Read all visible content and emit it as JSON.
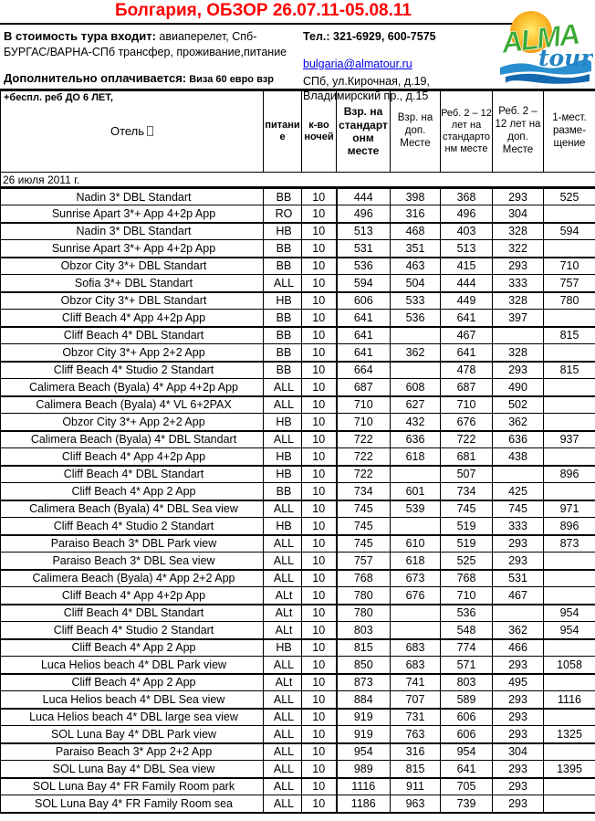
{
  "header": {
    "title": "Болгария, ОБЗОР 26.07.11-05.08.11",
    "includes_label": "В стоимость тура входит:",
    "includes_text": " авиаперелет, Спб-БУРГАС/ВАРНА-СПб трансфер, проживание,питание",
    "extra_label": "Дополнительно оплачивается:",
    "extra_text": " Виза 60 евро взр +беспл. реб ДО 6 ЛЕТ,",
    "phone": "Тел.: 321-6929, 600-7575",
    "email": "bulgaria@almatour.ru",
    "address_line1": "СПб, ул.Кирочная, д.19,",
    "address_line2": "Владимирский пр., д.15",
    "logo": {
      "alma": "ALMA",
      "tour": "tour"
    }
  },
  "colors": {
    "title_red": "#ff0000",
    "link_blue": "#0000ee",
    "logo_green": "#3aaa35",
    "logo_blue": "#2383c4",
    "sun_orange": "#f49a11",
    "wave_blue": "#2a8fd0"
  },
  "table": {
    "columns": [
      "Отель",
      "питание",
      "к-во ночей",
      "Взр. на стандартонм месте",
      "Взр. на доп. Месте",
      "Реб. 2 – 12 лет на стандартонм месте",
      "Реб. 2 – 12 лет на доп. Месте",
      "1-мест. разме-щение"
    ],
    "section_date": "26 июля 2011 г.",
    "rows": [
      [
        "Nadin 3* DBL Standart",
        "BB",
        "10",
        "444",
        "398",
        "368",
        "293",
        "525"
      ],
      [
        "Sunrise Apart 3*+ App 4+2p App",
        "RO",
        "10",
        "496",
        "316",
        "496",
        "304",
        ""
      ],
      [
        "Nadin 3* DBL Standart",
        "HB",
        "10",
        "513",
        "468",
        "403",
        "328",
        "594"
      ],
      [
        "Sunrise Apart 3*+ App 4+2p App",
        "BB",
        "10",
        "531",
        "351",
        "513",
        "322",
        ""
      ],
      [
        "Obzor City 3*+ DBL Standart",
        "BB",
        "10",
        "536",
        "463",
        "415",
        "293",
        "710"
      ],
      [
        "Sofia 3*+ DBL Standart",
        "ALL",
        "10",
        "594",
        "504",
        "444",
        "333",
        "757"
      ],
      [
        "Obzor City 3*+ DBL Standart",
        "HB",
        "10",
        "606",
        "533",
        "449",
        "328",
        "780"
      ],
      [
        "Cliff Beach 4* App 4+2p App",
        "BB",
        "10",
        "641",
        "536",
        "641",
        "397",
        ""
      ],
      [
        "Cliff Beach 4* DBL Standart",
        "BB",
        "10",
        "641",
        "",
        "467",
        "",
        "815"
      ],
      [
        "Obzor City 3*+ App 2+2 App",
        "BB",
        "10",
        "641",
        "362",
        "641",
        "328",
        ""
      ],
      [
        "Cliff Beach 4* Studio 2 Standart",
        "BB",
        "10",
        "664",
        "",
        "478",
        "293",
        "815"
      ],
      [
        "Calimera Beach (Byala) 4* App 4+2p App",
        "ALL",
        "10",
        "687",
        "608",
        "687",
        "490",
        ""
      ],
      [
        "Calimera Beach (Byala) 4* VL 6+2PAX",
        "ALL",
        "10",
        "710",
        "627",
        "710",
        "502",
        ""
      ],
      [
        "Obzor City 3*+ App 2+2 App",
        "HB",
        "10",
        "710",
        "432",
        "676",
        "362",
        ""
      ],
      [
        "Calimera Beach (Byala) 4* DBL Standart",
        "ALL",
        "10",
        "722",
        "636",
        "722",
        "636",
        "937"
      ],
      [
        "Cliff Beach 4* App 4+2p App",
        "HB",
        "10",
        "722",
        "618",
        "681",
        "438",
        ""
      ],
      [
        "Cliff Beach 4* DBL Standart",
        "HB",
        "10",
        "722",
        "",
        "507",
        "",
        "896"
      ],
      [
        "Cliff Beach 4* App 2 App",
        "BB",
        "10",
        "734",
        "601",
        "734",
        "425",
        ""
      ],
      [
        "Calimera Beach (Byala) 4* DBL Sea view",
        "ALL",
        "10",
        "745",
        "539",
        "745",
        "745",
        "971"
      ],
      [
        "Cliff Beach 4* Studio 2 Standart",
        "HB",
        "10",
        "745",
        "",
        "519",
        "333",
        "896"
      ],
      [
        "Paraiso Beach 3* DBL Park view",
        "ALL",
        "10",
        "745",
        "610",
        "519",
        "293",
        "873"
      ],
      [
        "Paraiso Beach 3* DBL Sea view",
        "ALL",
        "10",
        "757",
        "618",
        "525",
        "293",
        ""
      ],
      [
        "Calimera Beach (Byala) 4* App 2+2 App",
        "ALL",
        "10",
        "768",
        "673",
        "768",
        "531",
        ""
      ],
      [
        "Cliff Beach 4* App 4+2p App",
        "ALt",
        "10",
        "780",
        "676",
        "710",
        "467",
        ""
      ],
      [
        "Cliff Beach 4* DBL Standart",
        "ALt",
        "10",
        "780",
        "",
        "536",
        "",
        "954"
      ],
      [
        "Cliff Beach 4* Studio 2 Standart",
        "ALt",
        "10",
        "803",
        "",
        "548",
        "362",
        "954"
      ],
      [
        "Cliff Beach 4* App 2 App",
        "HB",
        "10",
        "815",
        "683",
        "774",
        "466",
        ""
      ],
      [
        "Luca Helios beach 4* DBL Park view",
        "ALL",
        "10",
        "850",
        "683",
        "571",
        "293",
        "1058"
      ],
      [
        "Cliff Beach 4* App 2 App",
        "ALt",
        "10",
        "873",
        "741",
        "803",
        "495",
        ""
      ],
      [
        "Luca Helios beach 4* DBL Sea view",
        "ALL",
        "10",
        "884",
        "707",
        "589",
        "293",
        "1116"
      ],
      [
        "Luca Helios beach 4* DBL large sea view",
        "ALL",
        "10",
        "919",
        "731",
        "606",
        "293",
        ""
      ],
      [
        "SOL Luna Bay 4* DBL Park view",
        "ALL",
        "10",
        "919",
        "763",
        "606",
        "293",
        "1325"
      ],
      [
        "Paraiso Beach 3* App 2+2 App",
        "ALL",
        "10",
        "954",
        "316",
        "954",
        "304",
        ""
      ],
      [
        "SOL Luna Bay 4* DBL Sea view",
        "ALL",
        "10",
        "989",
        "815",
        "641",
        "293",
        "1395"
      ],
      [
        "SOL Luna Bay 4* FR Family Room park",
        "ALL",
        "10",
        "1116",
        "911",
        "705",
        "293",
        ""
      ],
      [
        "SOL Luna Bay 4* FR Family Room sea",
        "ALL",
        "10",
        "1186",
        "963",
        "739",
        "293",
        ""
      ]
    ]
  }
}
